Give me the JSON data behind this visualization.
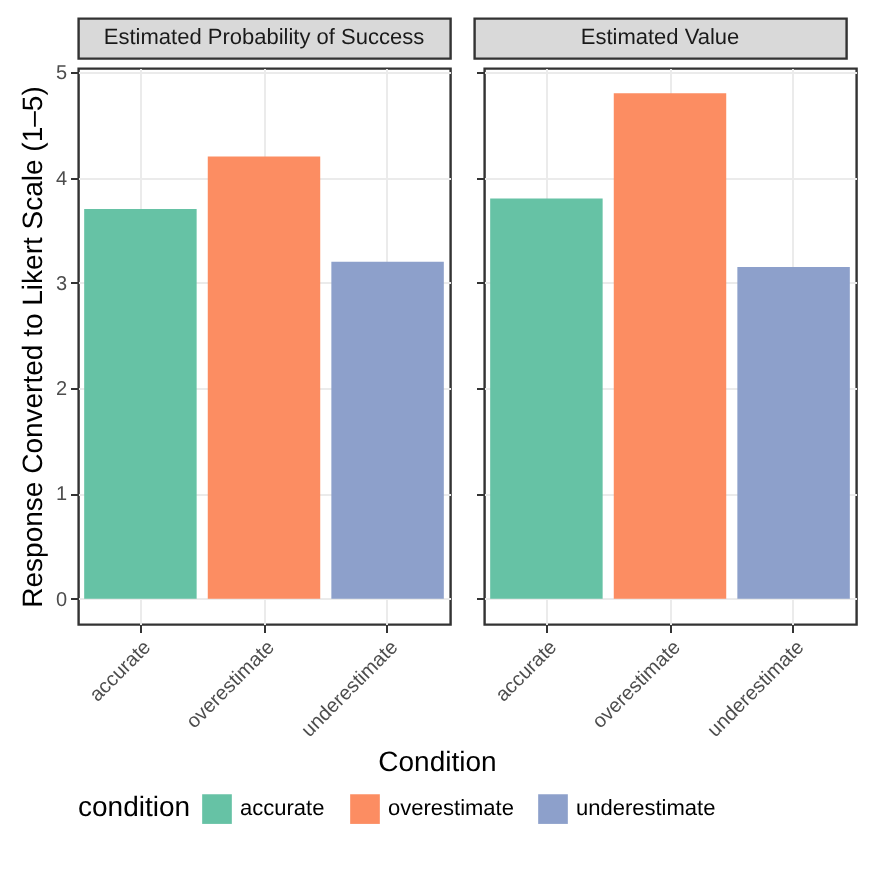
{
  "chart_data": [
    {
      "type": "bar",
      "title": "Estimated Probability of Success",
      "ylabel": "Response Converted to Likert Scale (1–5)",
      "xlabel": "Condition",
      "legend_title": "condition",
      "legend": "bottom",
      "grid": true,
      "categories": [
        "accurate",
        "overestimate",
        "underestimate"
      ],
      "series": [
        {
          "name": "accurate",
          "color": "#66c2a5",
          "values": [
            3.7,
            null,
            null
          ]
        },
        {
          "name": "overestimate",
          "color": "#fc8d62",
          "values": [
            null,
            4.2,
            null
          ]
        },
        {
          "name": "underestimate",
          "color": "#8da0cb",
          "values": [
            null,
            null,
            3.2
          ]
        }
      ],
      "ylim": [
        -0.24,
        5.04
      ],
      "yticks": [
        0,
        1,
        2,
        3,
        4,
        5
      ]
    },
    {
      "type": "bar",
      "title": "Estimated Value",
      "grid": true,
      "tick_labels": "x",
      "categories": [
        "accurate",
        "overestimate",
        "underestimate"
      ],
      "series": [
        {
          "name": "accurate",
          "color": "#66c2a5",
          "values": [
            3.8,
            null,
            null
          ]
        },
        {
          "name": "overestimate",
          "color": "#fc8d62",
          "values": [
            null,
            4.8,
            null
          ]
        },
        {
          "name": "underestimate",
          "color": "#8da0cb",
          "values": [
            null,
            null,
            3.15
          ]
        }
      ],
      "ylim": [
        -0.24,
        5.04
      ],
      "yticks": [
        0,
        1,
        2,
        3,
        4,
        5
      ]
    }
  ]
}
